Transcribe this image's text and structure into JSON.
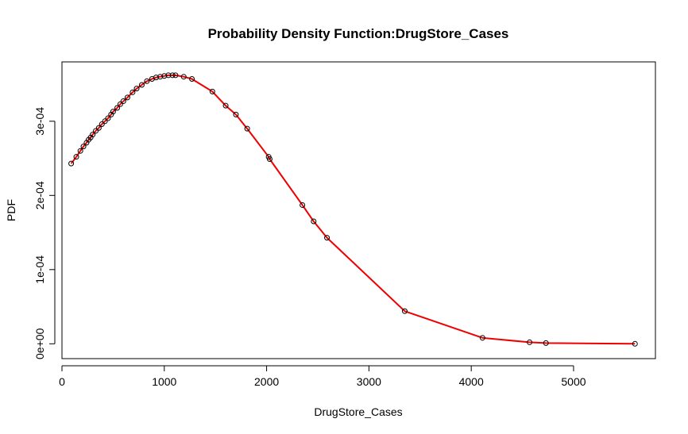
{
  "chart_data": {
    "type": "line",
    "title": "Probability Density Function:DrugStore_Cases",
    "xlabel": "DrugStore_Cases",
    "ylabel": "PDF",
    "xlim": [
      0,
      5800
    ],
    "ylim": [
      -2e-05,
      0.00038
    ],
    "x_ticks": [
      0,
      1000,
      2000,
      3000,
      4000,
      5000
    ],
    "x_tick_labels": [
      "0",
      "1000",
      "2000",
      "3000",
      "4000",
      "5000"
    ],
    "y_ticks": [
      0,
      0.0001,
      0.0002,
      0.0003
    ],
    "y_tick_labels": [
      "0e+00",
      "1e-04",
      "2e-04",
      "3e-04"
    ],
    "grid": false,
    "legend": "none",
    "series": [
      {
        "line_color": "#ee0000",
        "point_color": "#000000",
        "points": [
          [
            90,
            0.000243
          ],
          [
            140,
            0.000252
          ],
          [
            180,
            0.00026
          ],
          [
            210,
            0.000266
          ],
          [
            240,
            0.000271
          ],
          [
            260,
            0.000275
          ],
          [
            280,
            0.000278
          ],
          [
            300,
            0.000282
          ],
          [
            330,
            0.000287
          ],
          [
            360,
            0.000291
          ],
          [
            390,
            0.000296
          ],
          [
            420,
            0.0003
          ],
          [
            450,
            0.000304
          ],
          [
            480,
            0.000309
          ],
          [
            500,
            0.000313
          ],
          [
            540,
            0.000318
          ],
          [
            570,
            0.000323
          ],
          [
            600,
            0.000327
          ],
          [
            640,
            0.000332
          ],
          [
            690,
            0.000339
          ],
          [
            730,
            0.000344
          ],
          [
            780,
            0.000349
          ],
          [
            830,
            0.000354
          ],
          [
            880,
            0.000357
          ],
          [
            920,
            0.000359
          ],
          [
            960,
            0.00036
          ],
          [
            1000,
            0.000361
          ],
          [
            1040,
            0.000362
          ],
          [
            1080,
            0.000362
          ],
          [
            1110,
            0.000362
          ],
          [
            1190,
            0.00036
          ],
          [
            1270,
            0.000357
          ],
          [
            1470,
            0.00034
          ],
          [
            1600,
            0.000321
          ],
          [
            1700,
            0.000309
          ],
          [
            1810,
            0.00029
          ],
          [
            2020,
            0.000252
          ],
          [
            2030,
            0.000249
          ],
          [
            2350,
            0.000187
          ],
          [
            2460,
            0.000165
          ],
          [
            2590,
            0.000143
          ],
          [
            3350,
            4.4e-05
          ],
          [
            4110,
            8e-06
          ],
          [
            4570,
            2e-06
          ],
          [
            4730,
            1e-06
          ],
          [
            5600,
            0.0
          ]
        ]
      }
    ]
  }
}
